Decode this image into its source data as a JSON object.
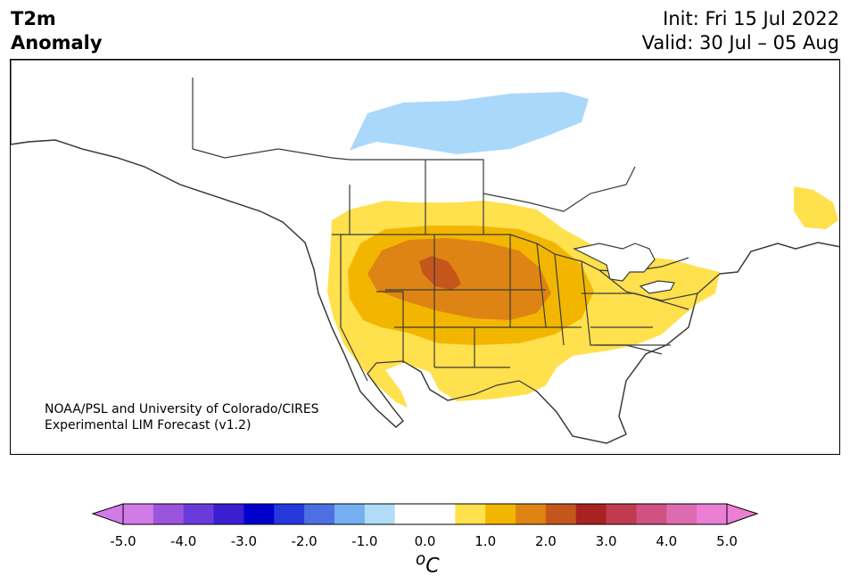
{
  "title": {
    "variable": "T2m",
    "type": "Anomaly"
  },
  "dates": {
    "init": "Init: Fri 15 Jul 2022",
    "valid": "Valid: 30 Jul – 05 Aug"
  },
  "credit": {
    "line1": "NOAA/PSL and University of Colorado/CIRES",
    "line2": "Experimental LIM Forecast (v1.2)"
  },
  "colorbar": {
    "colors": [
      "#d17be8",
      "#9b55dd",
      "#6a3bdb",
      "#3a1fd1",
      "#0000cc",
      "#2639db",
      "#4d6fe3",
      "#75aff1",
      "#b0dcf7",
      "#ffffff",
      "#ffffff",
      "#ffe04d",
      "#f2b600",
      "#de8414",
      "#c4561c",
      "#a82222",
      "#c03a50",
      "#cf5281",
      "#dc6bb0",
      "#ea7fd4"
    ],
    "tick_labels": [
      "-5.0",
      "-4.0",
      "-3.0",
      "-2.0",
      "-1.0",
      "0.0",
      "1.0",
      "2.0",
      "3.0",
      "4.0",
      "5.0"
    ],
    "unit": "oC",
    "unit_base": "C",
    "unit_sup": "o"
  }
}
